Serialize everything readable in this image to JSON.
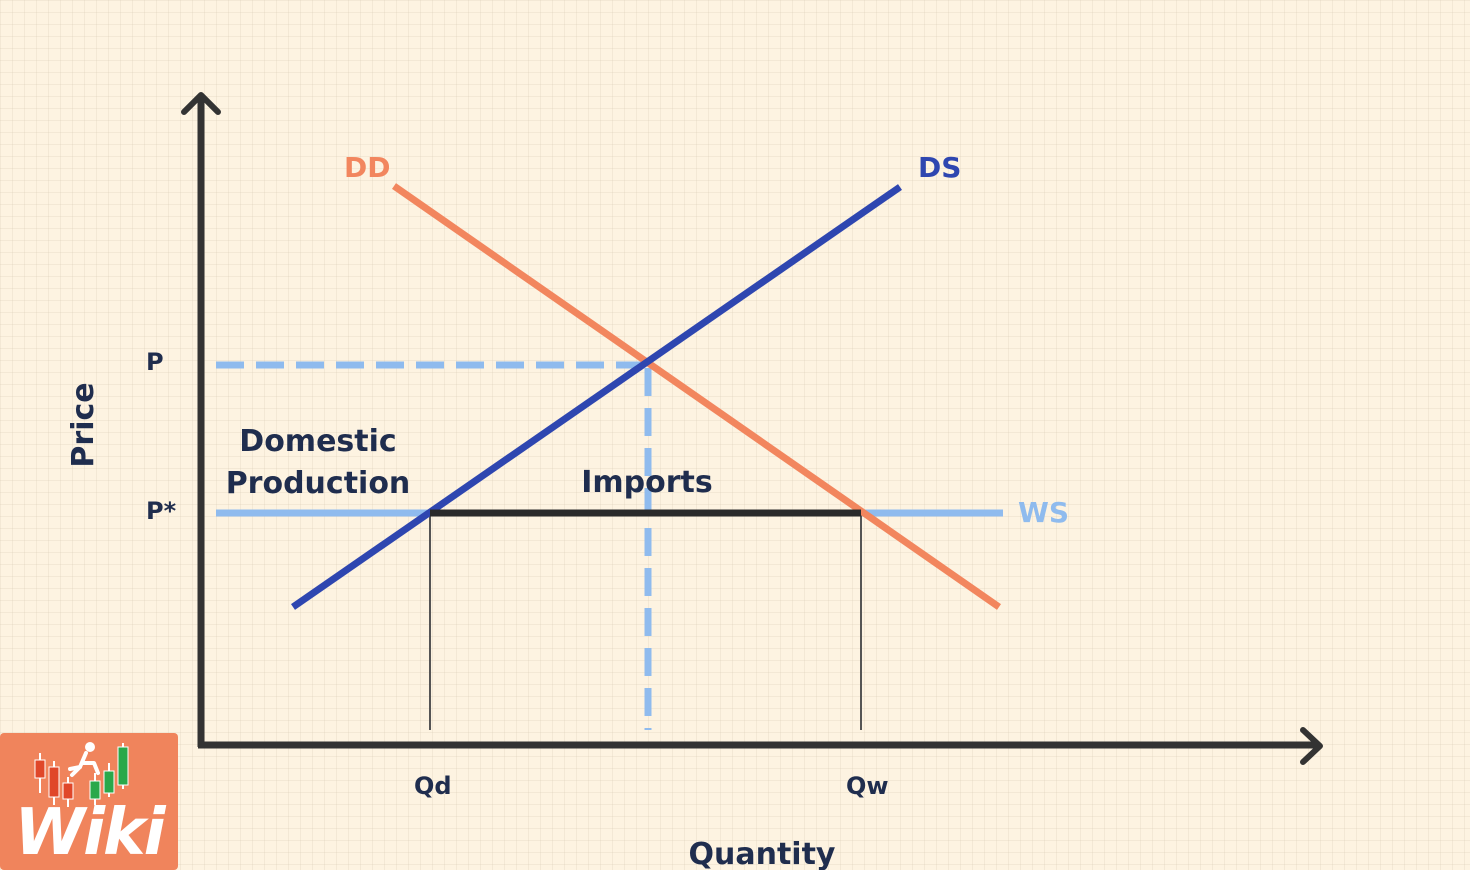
{
  "diagram": {
    "axes": {
      "y_label": "Price",
      "x_label": "Quantity"
    },
    "curves": {
      "demand": {
        "label": "DD",
        "color": "#f2865e"
      },
      "domestic_supply": {
        "label": "DS",
        "color": "#2e46b0"
      },
      "world_supply": {
        "label": "WS",
        "color": "#8fbbee"
      }
    },
    "price_ticks": {
      "autarky": "P",
      "world": "P*"
    },
    "quantity_ticks": {
      "domestic": "Qd",
      "world": "Qw"
    },
    "regions": {
      "domestic_line1": "Domestic",
      "domestic_line2": "Production",
      "imports": "Imports"
    },
    "colors": {
      "axis": "#333333",
      "text": "#1f2d4e",
      "imports_segment": "#2b2b2b"
    }
  },
  "logo": {
    "text": "Wiki",
    "background": "#f0845c"
  }
}
